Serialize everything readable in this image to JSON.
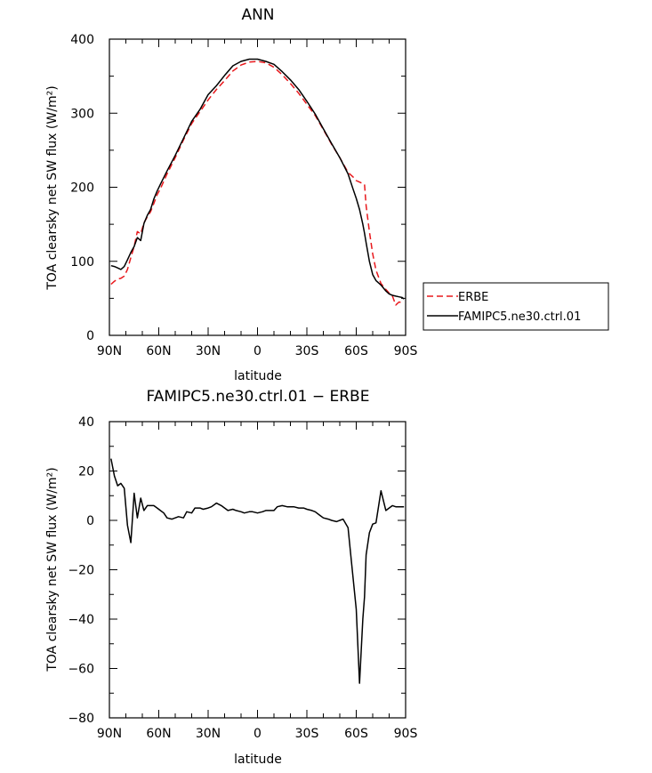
{
  "chart_data": [
    {
      "type": "line",
      "title": "ANN",
      "xlabel": "latitude",
      "ylabel": "TOA clearsky net SW flux (W/m²)",
      "xlim": [
        90,
        -90
      ],
      "ylim": [
        0,
        400
      ],
      "x_ticks": [
        90,
        60,
        30,
        0,
        -30,
        -60,
        -90
      ],
      "x_tick_labels": [
        "90N",
        "60N",
        "30N",
        "0",
        "30S",
        "60S",
        "90S"
      ],
      "y_ticks": [
        0,
        100,
        200,
        300,
        400
      ],
      "y_tick_labels": [
        "0",
        "100",
        "200",
        "300",
        "400"
      ],
      "legend": "right",
      "series": [
        {
          "name": "ERBE",
          "color": "#e8181c",
          "dash": "dashed",
          "x": [
            89,
            87,
            85,
            83,
            81,
            79,
            77,
            75,
            73,
            71,
            69,
            67,
            65,
            63,
            61,
            59,
            55,
            50,
            45,
            40,
            35,
            30,
            25,
            20,
            15,
            10,
            5,
            0,
            -5,
            -10,
            -15,
            -20,
            -25,
            -30,
            -35,
            -40,
            -45,
            -50,
            -55,
            -58,
            -60,
            -62,
            -64,
            -65,
            -66,
            -68,
            -70,
            -72,
            -75,
            -78,
            -80,
            -82,
            -84,
            -86,
            -88,
            -89
          ],
          "values": [
            69,
            73,
            76,
            77,
            80,
            89,
            105,
            120,
            140,
            137,
            152,
            160,
            167,
            178,
            190,
            198,
            218,
            240,
            264,
            286,
            302,
            318,
            332,
            344,
            357,
            365,
            369,
            370,
            368,
            362,
            352,
            340,
            327,
            312,
            297,
            278,
            258,
            240,
            220,
            214,
            209,
            207,
            205,
            204,
            175,
            140,
            110,
            88,
            70,
            62,
            57,
            53,
            41,
            45,
            44,
            43
          ]
        },
        {
          "name": "FAMIPC5.ne30.ctrl.01",
          "color": "#000000",
          "dash": "solid",
          "x": [
            89,
            87,
            85,
            83,
            81,
            79,
            77,
            75,
            73,
            71,
            69,
            67,
            65,
            63,
            61,
            59,
            55,
            50,
            45,
            40,
            35,
            30,
            25,
            20,
            15,
            10,
            5,
            0,
            -5,
            -10,
            -15,
            -20,
            -25,
            -30,
            -35,
            -40,
            -45,
            -50,
            -55,
            -58,
            -60,
            -62,
            -64,
            -65,
            -66,
            -68,
            -70,
            -72,
            -75,
            -78,
            -80,
            -82,
            -84,
            -86,
            -88,
            -89
          ],
          "values": [
            94,
            93,
            91,
            89,
            93,
            102,
            112,
            120,
            132,
            128,
            151,
            162,
            170,
            184,
            195,
            204,
            222,
            243,
            266,
            289,
            305,
            325,
            337,
            351,
            364,
            370,
            373,
            373,
            370,
            366,
            356,
            345,
            332,
            316,
            299,
            279,
            259,
            240,
            218,
            198,
            185,
            170,
            150,
            138,
            125,
            100,
            82,
            74,
            68,
            60,
            56,
            54,
            53,
            52,
            51,
            49
          ]
        }
      ]
    },
    {
      "type": "line",
      "title": "FAMIPC5.ne30.ctrl.01 − ERBE",
      "xlabel": "latitude",
      "ylabel": "TOA clearsky net SW flux (W/m²)",
      "xlim": [
        90,
        -90
      ],
      "ylim": [
        -80,
        40
      ],
      "x_ticks": [
        90,
        60,
        30,
        0,
        -30,
        -60,
        -90
      ],
      "x_tick_labels": [
        "90N",
        "60N",
        "30N",
        "0",
        "30S",
        "60S",
        "90S"
      ],
      "y_ticks": [
        -80,
        -60,
        -40,
        -20,
        0,
        20,
        40
      ],
      "y_tick_labels": [
        "−80",
        "−60",
        "−40",
        "−20",
        "0",
        "20",
        "40"
      ],
      "series": [
        {
          "color": "#000000",
          "dash": "solid",
          "x": [
            89,
            87,
            85,
            83,
            81,
            79,
            77,
            75,
            73,
            71,
            69,
            67,
            65,
            63,
            61,
            59,
            57,
            55,
            52,
            50,
            48,
            45,
            43,
            40,
            38,
            35,
            33,
            30,
            28,
            25,
            22,
            20,
            18,
            15,
            13,
            10,
            8,
            5,
            3,
            0,
            -3,
            -5,
            -8,
            -10,
            -12,
            -15,
            -18,
            -20,
            -22,
            -25,
            -28,
            -30,
            -33,
            -35,
            -38,
            -40,
            -43,
            -45,
            -48,
            -50,
            -52,
            -55,
            -57,
            -60,
            -62,
            -64,
            -65,
            -66,
            -68,
            -70,
            -72,
            -75,
            -78,
            -80,
            -82,
            -84,
            -86,
            -88,
            -89
          ],
          "values": [
            25,
            18,
            14,
            15,
            13,
            -2,
            -9,
            11,
            1,
            9,
            4,
            6,
            6,
            6,
            5,
            4,
            3,
            1,
            0.5,
            1,
            1.5,
            1,
            3.5,
            3,
            5,
            5,
            4.5,
            5,
            5.5,
            7,
            6,
            5,
            4,
            4.5,
            4,
            3.5,
            3,
            3.5,
            3.5,
            3,
            3.5,
            4,
            4,
            4,
            5.5,
            6,
            5.5,
            5.5,
            5.5,
            5,
            5,
            4.5,
            4,
            3.5,
            2,
            1,
            0.5,
            0,
            -0.5,
            0,
            0.5,
            -3,
            -16,
            -36,
            -66,
            -40,
            -31,
            -14,
            -5,
            -1.5,
            -1,
            12,
            4,
            5,
            6,
            5.5,
            5.5,
            5.5,
            5.5
          ]
        }
      ]
    }
  ]
}
